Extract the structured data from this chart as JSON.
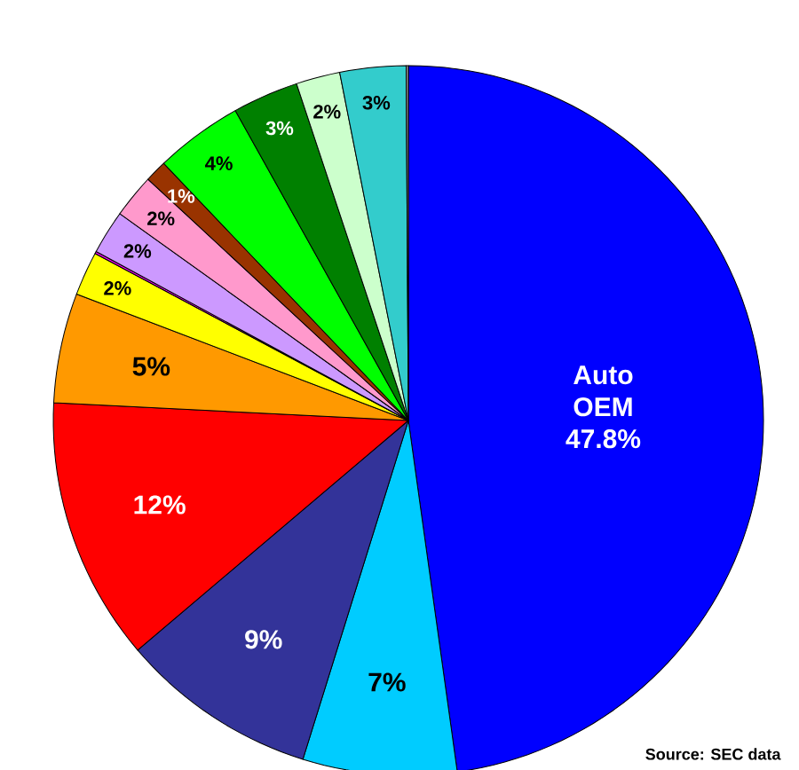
{
  "chart_data": {
    "type": "pie",
    "categories": [
      "Auto OEM",
      null,
      null,
      null,
      null,
      null,
      null,
      null,
      null,
      null,
      null,
      null,
      null,
      null,
      null
    ],
    "values": [
      47.8,
      7,
      9,
      12,
      5,
      2,
      0.1,
      2,
      2,
      1,
      4,
      3,
      2,
      3,
      0.1
    ],
    "value_labels": [
      "47.8%",
      "7%",
      "9%",
      "12%",
      "5%",
      "2%",
      null,
      "2%",
      "2%",
      "1%",
      "4%",
      "3%",
      "2%",
      "3%",
      null
    ],
    "colors": [
      "#0000ff",
      "#00ccff",
      "#333399",
      "#ff0000",
      "#ff9900",
      "#ffff00",
      "#ff00ff",
      "#cc99ff",
      "#ff99cc",
      "#993300",
      "#00ff00",
      "#008000",
      "#ccffcc",
      "#33cccc",
      "#969696"
    ],
    "annotations": [
      "Source: SEC data"
    ]
  }
}
